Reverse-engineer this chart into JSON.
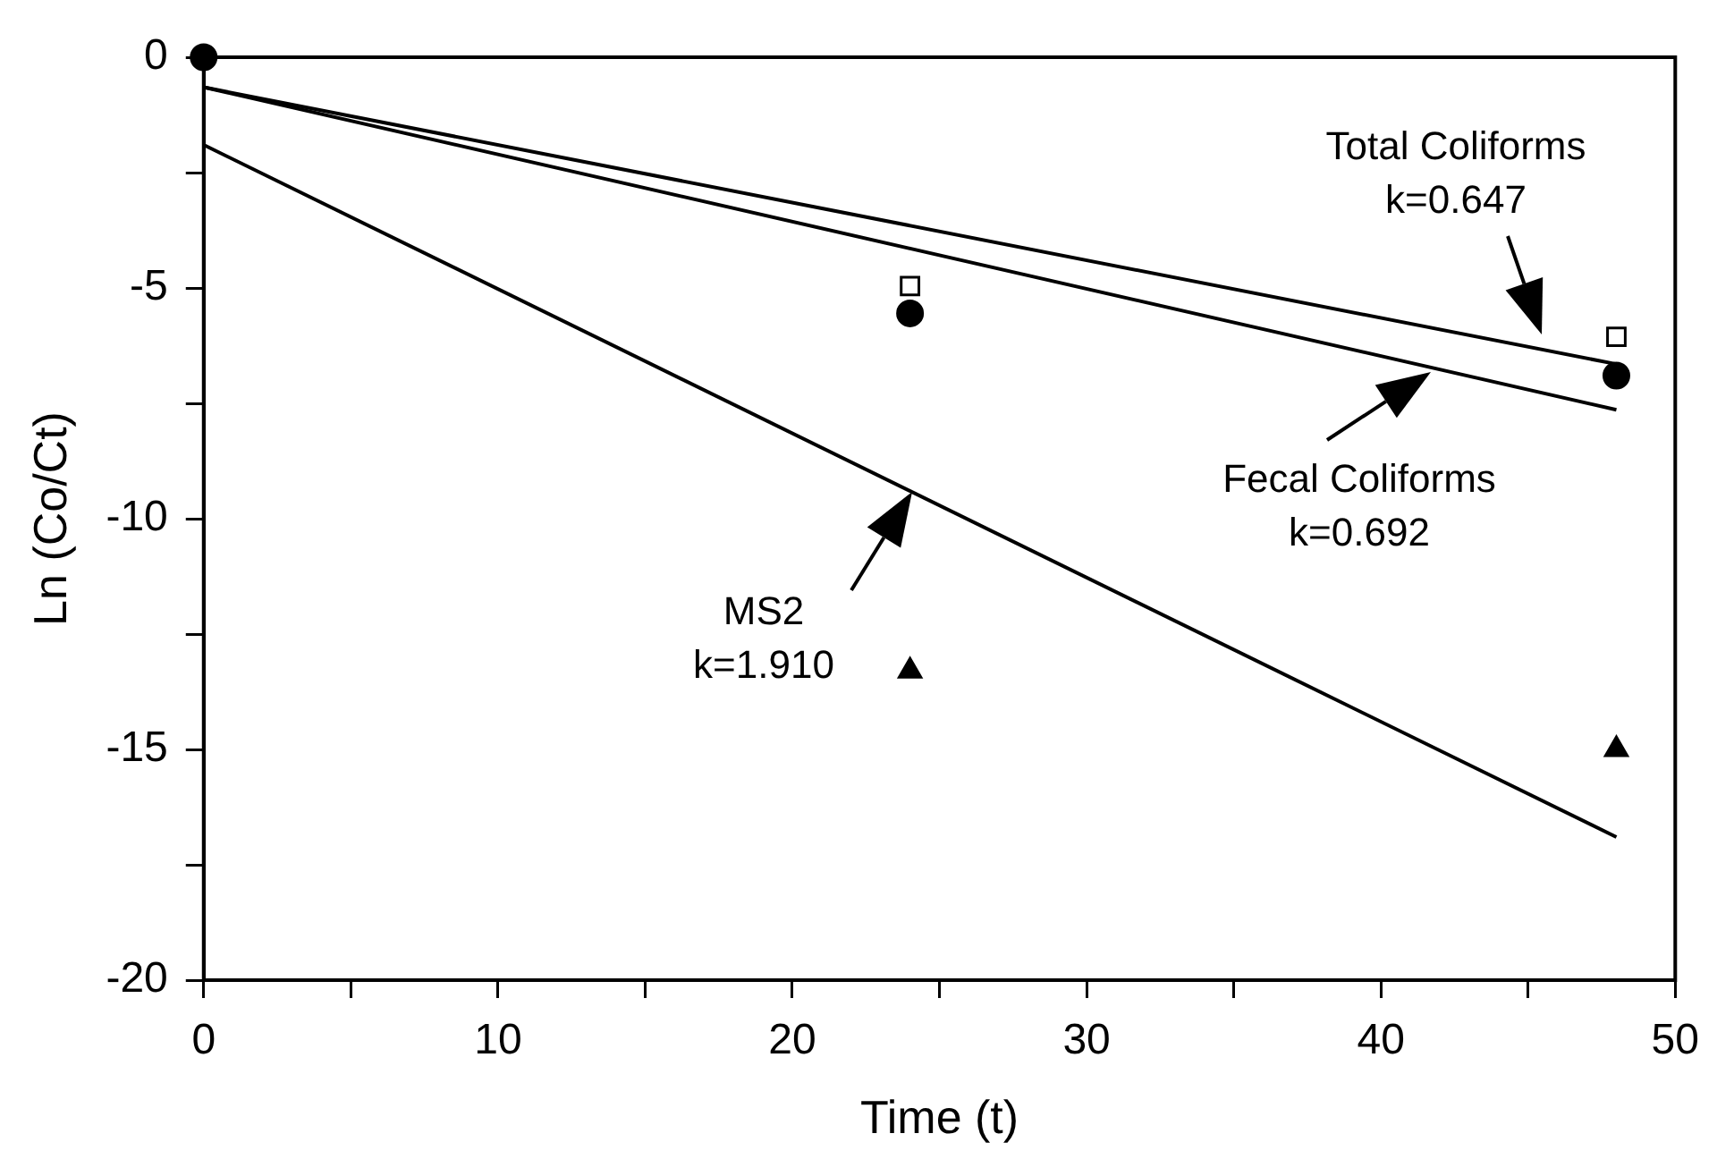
{
  "chart_data": {
    "type": "scatter",
    "xlabel": "Time (t)",
    "ylabel": "Ln (Co/Ct)",
    "xlim": [
      0,
      50
    ],
    "xticks": [
      0,
      {
        "value": 5,
        "label": null
      },
      10,
      {
        "value": 15,
        "label": null
      },
      20,
      {
        "value": 25,
        "label": null
      },
      30,
      {
        "value": 35,
        "label": null
      },
      40,
      {
        "value": 45,
        "label": null
      },
      50
    ],
    "ylim": [
      -20,
      0
    ],
    "yticks": [
      -20,
      {
        "value": -17.5,
        "label": null
      },
      -15,
      {
        "value": -12.5,
        "label": null
      },
      -10,
      {
        "value": -7.5,
        "label": null
      },
      -5,
      {
        "value": -2.5,
        "label": null
      },
      0
    ],
    "grid": false,
    "legend": false,
    "series": [
      {
        "marker": "square",
        "color": "#000000",
        "x": [
          24,
          48
        ],
        "values": [
          -4.96,
          -6.06
        ]
      },
      {
        "marker": "circle",
        "color": "#000000",
        "x": [
          0,
          24,
          48
        ],
        "values": [
          0,
          -5.55,
          -6.9
        ]
      },
      {
        "marker": "triangle",
        "color": "#000000",
        "x": [
          24,
          48
        ],
        "values": [
          -13.3,
          -15.0
        ]
      },
      {
        "type": "line",
        "marker": "none",
        "color": "#000000",
        "x": [
          0,
          48
        ],
        "values": [
          -0.65,
          -6.65
        ]
      },
      {
        "type": "line",
        "marker": "none",
        "color": "#000000",
        "x": [
          0,
          48
        ],
        "values": [
          -0.65,
          -7.64
        ]
      },
      {
        "type": "line",
        "marker": "none",
        "color": "#000000",
        "x": [
          0,
          48
        ],
        "values": [
          -1.9,
          -16.9
        ]
      }
    ],
    "annotations": [
      "Total Coliforms\nk=0.647",
      "Fecal Coliforms\nk=0.692",
      "MS2\nk=1.910"
    ]
  }
}
